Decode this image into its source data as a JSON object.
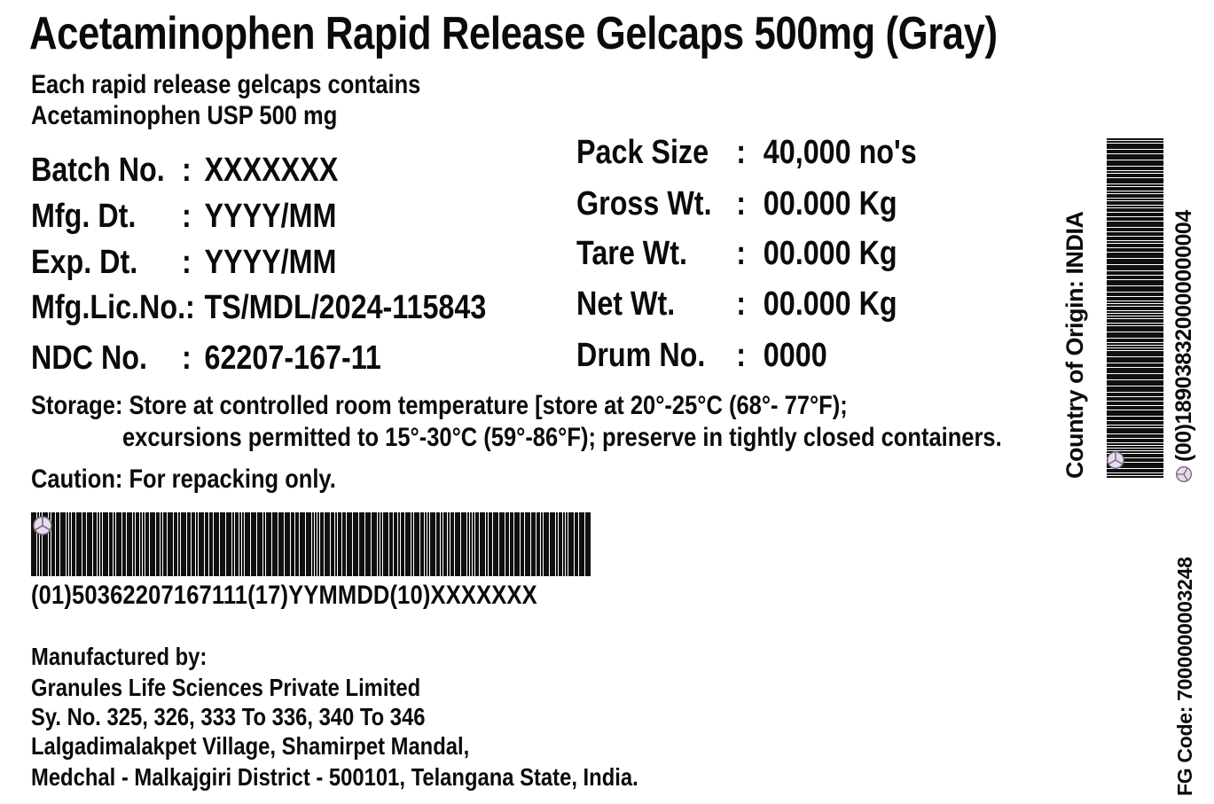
{
  "header": {
    "title": "Acetaminophen Rapid Release Gelcaps 500mg (Gray)",
    "composition_line1": "Each rapid release gelcaps contains",
    "composition_line2": "Acetaminophen USP 500 mg"
  },
  "fields_left": [
    {
      "label": "Batch No.",
      "sep": ":",
      "value": "XXXXXXX"
    },
    {
      "label": "Mfg. Dt.",
      "sep": ":",
      "value": "YYYY/MM"
    },
    {
      "label": "Exp. Dt.",
      "sep": ":",
      "value": "YYYY/MM"
    },
    {
      "label": "Mfg.Lic.No.:",
      "sep": "",
      "value": "TS/MDL/2024-115843"
    },
    {
      "label": "NDC No.",
      "sep": ":",
      "value": "62207-167-11"
    }
  ],
  "fields_right": [
    {
      "label": "Pack Size",
      "sep": ":",
      "value": "40,000 no's"
    },
    {
      "label": "Gross Wt.",
      "sep": ":",
      "value": "00.000 Kg"
    },
    {
      "label": "Tare Wt.",
      "sep": ":",
      "value": "00.000 Kg"
    },
    {
      "label": "Net Wt.",
      "sep": ":",
      "value": "00.000 Kg"
    },
    {
      "label": "Drum No.",
      "sep": ":",
      "value": "0000"
    }
  ],
  "storage": {
    "line1": "Storage: Store at controlled room temperature [store at 20°-25°C (68°- 77°F);",
    "line2": "excursions permitted to 15°-30°C (59°-86°F); preserve in tightly closed containers."
  },
  "caution": "Caution: For repacking only.",
  "main_barcode": {
    "human_readable": "(01)50362207167111(17)YYMMDD(10)XXXXXXX"
  },
  "side": {
    "country_of_origin": "Country of Origin: INDIA",
    "sscc_text": "(00)189038320000000004",
    "fg_code": "FG Code: 7000000003248"
  },
  "manufacturer": {
    "heading": "Manufactured by:",
    "lines": [
      "Granules Life Sciences Private Limited",
      "Sy. No. 325, 326, 333 To 336, 340 To 346",
      "Lalgadimalakpet Village, Shamirpet Mandal,",
      "Medchal - Malkajgiri District - 500101, Telangana State, India."
    ]
  },
  "icons": {
    "fnc1_symbol": "circle-y-glyph"
  },
  "colors": {
    "ink": "#0b0b0b",
    "background": "#ffffff",
    "fnc_symbol_fill": "#ead9f5",
    "fnc_symbol_stroke": "#6f6f6f"
  }
}
